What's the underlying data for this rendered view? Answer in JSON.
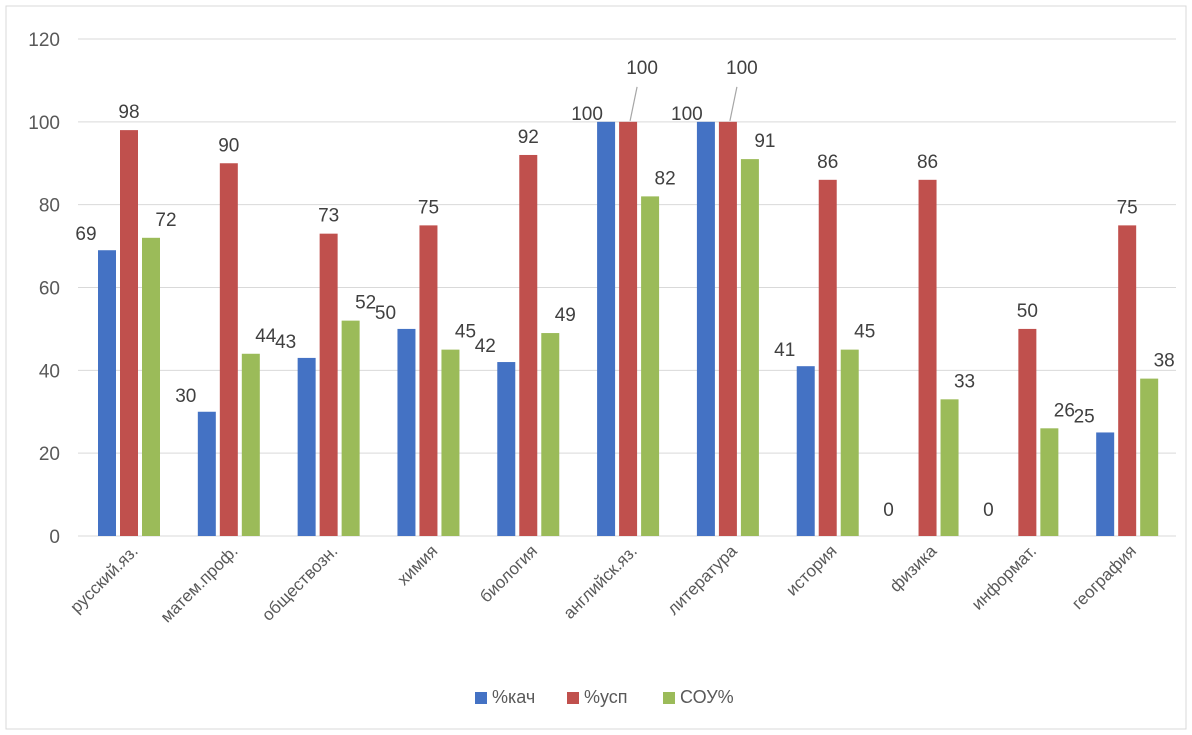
{
  "chart_data": {
    "type": "bar",
    "title": "",
    "xlabel": "",
    "ylabel": "",
    "ylim": [
      0,
      120
    ],
    "yticks": [
      0,
      20,
      40,
      60,
      80,
      100,
      120
    ],
    "grid": true,
    "legend_position": "bottom",
    "categories": [
      "русский.яз.",
      "матем.проф.",
      "обществозн.",
      "химия",
      "биология",
      "английск.яз.",
      "литература",
      "история",
      "физика",
      "информат.",
      "география"
    ],
    "series": [
      {
        "name": "%кач",
        "color": "#4472C4",
        "values": [
          69,
          30,
          43,
          50,
          42,
          100,
          100,
          41,
          0,
          0,
          25
        ]
      },
      {
        "name": "%усп",
        "color": "#C0504D",
        "values": [
          98,
          90,
          73,
          75,
          92,
          100,
          100,
          86,
          86,
          50,
          75
        ]
      },
      {
        "name": "СОУ%",
        "color": "#9BBB59",
        "values": [
          72,
          44,
          52,
          45,
          49,
          82,
          91,
          45,
          33,
          26,
          38
        ]
      }
    ]
  }
}
